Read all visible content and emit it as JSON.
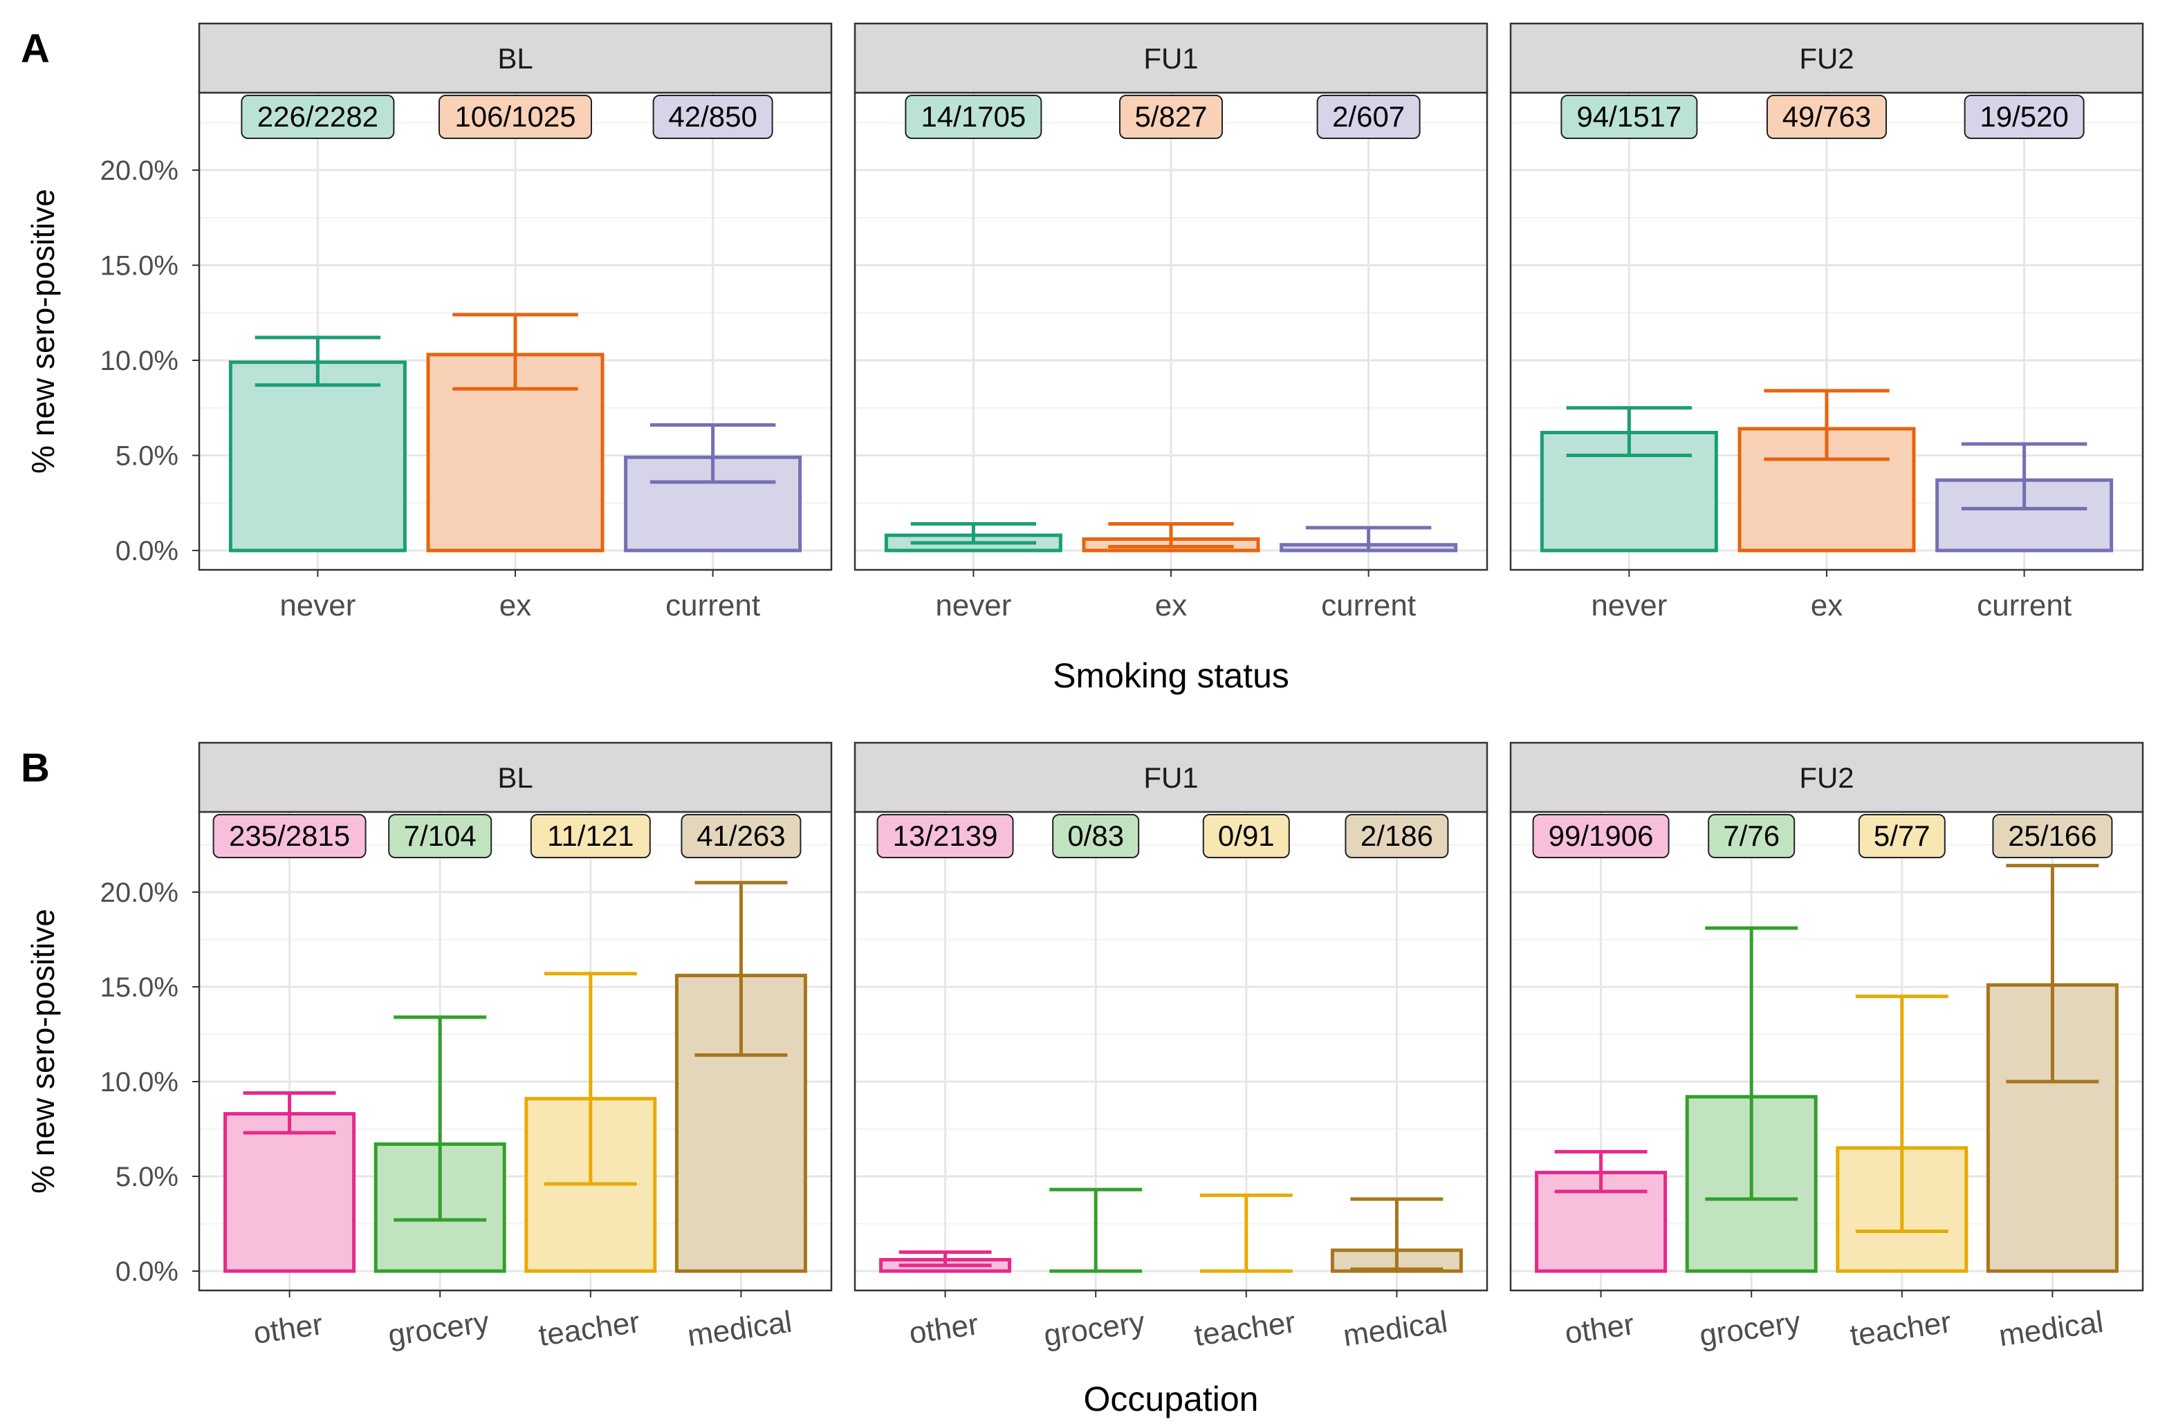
{
  "chart_data": [
    {
      "type": "bar",
      "panel_letter": "A",
      "xlabel": "Smoking status",
      "ylabel": "% new sero-positive",
      "ylim": [
        0,
        25
      ],
      "yticks": [
        "0.0%",
        "5.0%",
        "10.0%",
        "15.0%",
        "20.0%"
      ],
      "ytick_values": [
        0,
        5,
        10,
        15,
        20
      ],
      "grid": true,
      "categories": [
        "never",
        "ex",
        "current"
      ],
      "colors": [
        "#1b9e77",
        "#e7640f",
        "#7570b3"
      ],
      "facets": [
        {
          "name": "BL",
          "values": [
            9.9,
            10.3,
            4.9
          ],
          "ci_low": [
            8.7,
            8.5,
            3.6
          ],
          "ci_high": [
            11.2,
            12.4,
            6.6
          ],
          "labels": [
            "226/2282",
            "106/1025",
            "42/850"
          ]
        },
        {
          "name": "FU1",
          "values": [
            0.8,
            0.6,
            0.3
          ],
          "ci_low": [
            0.4,
            0.2,
            0.0
          ],
          "ci_high": [
            1.4,
            1.4,
            1.2
          ],
          "labels": [
            "14/1705",
            "5/827",
            "2/607"
          ]
        },
        {
          "name": "FU2",
          "values": [
            6.2,
            6.4,
            3.7
          ],
          "ci_low": [
            5.0,
            4.8,
            2.2
          ],
          "ci_high": [
            7.5,
            8.4,
            5.6
          ],
          "labels": [
            "94/1517",
            "49/763",
            "19/520"
          ]
        }
      ]
    },
    {
      "type": "bar",
      "panel_letter": "B",
      "xlabel": "Occupation",
      "ylabel": "% new sero-positive",
      "ylim": [
        0,
        25
      ],
      "yticks": [
        "0.0%",
        "5.0%",
        "10.0%",
        "15.0%",
        "20.0%"
      ],
      "ytick_values": [
        0,
        5,
        10,
        15,
        20
      ],
      "grid": true,
      "categories": [
        "other",
        "grocery",
        "teacher",
        "medical"
      ],
      "colors": [
        "#e7298a",
        "#33a02c",
        "#e6ab02",
        "#a6761d"
      ],
      "facets": [
        {
          "name": "BL",
          "values": [
            8.3,
            6.7,
            9.1,
            15.6
          ],
          "ci_low": [
            7.3,
            2.7,
            4.6,
            11.4
          ],
          "ci_high": [
            9.4,
            13.4,
            15.7,
            20.5
          ],
          "labels": [
            "235/2815",
            "7/104",
            "11/121",
            "41/263"
          ]
        },
        {
          "name": "FU1",
          "values": [
            0.6,
            0.0,
            0.0,
            1.1
          ],
          "ci_low": [
            0.3,
            0.0,
            0.0,
            0.1
          ],
          "ci_high": [
            1.0,
            4.3,
            4.0,
            3.8
          ],
          "labels": [
            "13/2139",
            "0/83",
            "0/91",
            "2/186"
          ]
        },
        {
          "name": "FU2",
          "values": [
            5.2,
            9.2,
            6.5,
            15.1
          ],
          "ci_low": [
            4.2,
            3.8,
            2.1,
            10.0
          ],
          "ci_high": [
            6.3,
            18.1,
            14.5,
            21.4
          ],
          "labels": [
            "99/1906",
            "7/76",
            "5/77",
            "25/166"
          ]
        }
      ]
    }
  ]
}
